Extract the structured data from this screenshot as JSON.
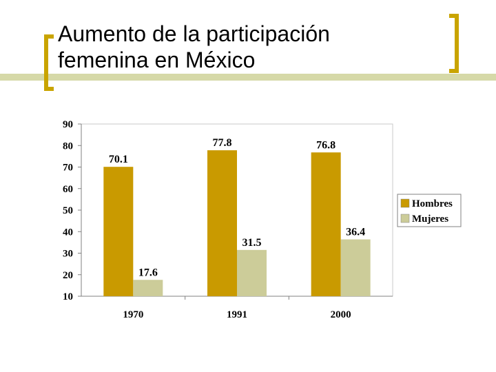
{
  "slide": {
    "title_lines": [
      "Aumento de la participación",
      "femenina en México"
    ],
    "accent_color": "#c9a400",
    "band_color": "#d6d9a8"
  },
  "chart_data": {
    "type": "bar",
    "categories": [
      "1970",
      "1991",
      "2000"
    ],
    "series": [
      {
        "name": "Hombres",
        "values": [
          70.1,
          77.8,
          76.8
        ],
        "color": "#c99a00"
      },
      {
        "name": "Mujeres",
        "values": [
          17.6,
          31.5,
          36.4
        ],
        "color": "#cccc99"
      }
    ],
    "data_labels": [
      [
        "70.1",
        "77.8",
        "76.8"
      ],
      [
        "17.6",
        "31.5",
        "36.4"
      ]
    ],
    "ylim": [
      10,
      90
    ],
    "yticks": [
      10,
      20,
      30,
      40,
      50,
      60,
      70,
      80,
      90
    ],
    "grid": false,
    "legend_position": "right"
  }
}
